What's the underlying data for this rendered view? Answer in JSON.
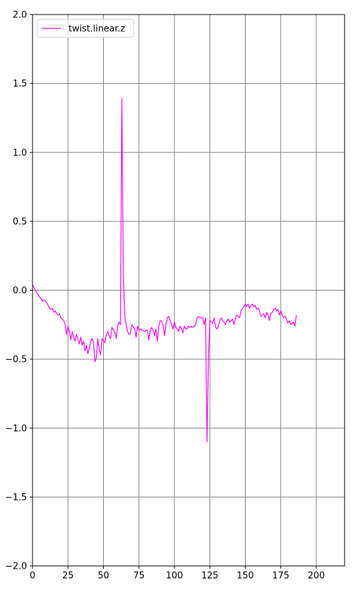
{
  "chart_data": {
    "type": "line",
    "title": "",
    "xlabel": "",
    "ylabel": "",
    "xlim": [
      0,
      220
    ],
    "ylim": [
      -2.0,
      2.0
    ],
    "x_ticks": [
      0,
      25,
      50,
      75,
      100,
      125,
      150,
      175,
      200
    ],
    "y_ticks": [
      -2.0,
      -1.5,
      -1.0,
      -0.5,
      0.0,
      0.5,
      1.0,
      1.5,
      2.0
    ],
    "x_tick_labels": [
      "0",
      "25",
      "50",
      "75",
      "100",
      "125",
      "150",
      "175",
      "200"
    ],
    "y_tick_labels": [
      "−2.0",
      "−1.5",
      "−1.0",
      "−0.5",
      "0.0",
      "0.5",
      "1.0",
      "1.5",
      "2.0"
    ],
    "grid": true,
    "grid_color": "#808080",
    "legend_position": "top-left",
    "series": [
      {
        "name": "twist.linear.z",
        "color": "#ff00ff",
        "points": [
          [
            0,
            0.04
          ],
          [
            1,
            0.02
          ],
          [
            2,
            0.0
          ],
          [
            3,
            -0.02
          ],
          [
            4,
            -0.03
          ],
          [
            5,
            -0.05
          ],
          [
            6,
            -0.06
          ],
          [
            7,
            -0.08
          ],
          [
            8,
            -0.07
          ],
          [
            9,
            -0.08
          ],
          [
            10,
            -0.09
          ],
          [
            11,
            -0.11
          ],
          [
            12,
            -0.13
          ],
          [
            13,
            -0.14
          ],
          [
            14,
            -0.13
          ],
          [
            15,
            -0.16
          ],
          [
            16,
            -0.15
          ],
          [
            17,
            -0.17
          ],
          [
            18,
            -0.18
          ],
          [
            19,
            -0.17
          ],
          [
            20,
            -0.2
          ],
          [
            21,
            -0.21
          ],
          [
            22,
            -0.22
          ],
          [
            23,
            -0.25
          ],
          [
            24,
            -0.32
          ],
          [
            25,
            -0.26
          ],
          [
            26,
            -0.3
          ],
          [
            27,
            -0.36
          ],
          [
            28,
            -0.3
          ],
          [
            29,
            -0.34
          ],
          [
            30,
            -0.37
          ],
          [
            31,
            -0.32
          ],
          [
            32,
            -0.35
          ],
          [
            33,
            -0.39
          ],
          [
            34,
            -0.34
          ],
          [
            35,
            -0.4
          ],
          [
            36,
            -0.37
          ],
          [
            37,
            -0.44
          ],
          [
            38,
            -0.4
          ],
          [
            39,
            -0.46
          ],
          [
            40,
            -0.42
          ],
          [
            41,
            -0.37
          ],
          [
            42,
            -0.35
          ],
          [
            43,
            -0.38
          ],
          [
            44,
            -0.52
          ],
          [
            45,
            -0.49
          ],
          [
            46,
            -0.35
          ],
          [
            47,
            -0.43
          ],
          [
            48,
            -0.47
          ],
          [
            49,
            -0.35
          ],
          [
            50,
            -0.37
          ],
          [
            51,
            -0.38
          ],
          [
            52,
            -0.32
          ],
          [
            53,
            -0.3
          ],
          [
            54,
            -0.33
          ],
          [
            55,
            -0.35
          ],
          [
            56,
            -0.27
          ],
          [
            57,
            -0.29
          ],
          [
            58,
            -0.3
          ],
          [
            59,
            -0.35
          ],
          [
            60,
            -0.26
          ],
          [
            61,
            -0.23
          ],
          [
            62,
            -0.25
          ],
          [
            63,
            1.39
          ],
          [
            64,
            0.1
          ],
          [
            65,
            -0.18
          ],
          [
            66,
            -0.25
          ],
          [
            67,
            -0.3
          ],
          [
            68,
            -0.32
          ],
          [
            69,
            -0.31
          ],
          [
            70,
            -0.25
          ],
          [
            71,
            -0.27
          ],
          [
            72,
            -0.28
          ],
          [
            73,
            -0.34
          ],
          [
            74,
            -0.26
          ],
          [
            75,
            -0.29
          ],
          [
            76,
            -0.28
          ],
          [
            77,
            -0.29
          ],
          [
            78,
            -0.29
          ],
          [
            79,
            -0.3
          ],
          [
            80,
            -0.29
          ],
          [
            81,
            -0.29
          ],
          [
            82,
            -0.36
          ],
          [
            83,
            -0.29
          ],
          [
            84,
            -0.27
          ],
          [
            85,
            -0.29
          ],
          [
            86,
            -0.33
          ],
          [
            87,
            -0.28
          ],
          [
            88,
            -0.37
          ],
          [
            89,
            -0.26
          ],
          [
            90,
            -0.22
          ],
          [
            91,
            -0.23
          ],
          [
            92,
            -0.25
          ],
          [
            93,
            -0.33
          ],
          [
            94,
            -0.25
          ],
          [
            95,
            -0.2
          ],
          [
            96,
            -0.19
          ],
          [
            97,
            -0.22
          ],
          [
            98,
            -0.25
          ],
          [
            99,
            -0.28
          ],
          [
            100,
            -0.23
          ],
          [
            101,
            -0.27
          ],
          [
            102,
            -0.28
          ],
          [
            103,
            -0.3
          ],
          [
            104,
            -0.26
          ],
          [
            105,
            -0.28
          ],
          [
            106,
            -0.31
          ],
          [
            107,
            -0.26
          ],
          [
            108,
            -0.28
          ],
          [
            109,
            -0.28
          ],
          [
            110,
            -0.26
          ],
          [
            111,
            -0.27
          ],
          [
            112,
            -0.26
          ],
          [
            113,
            -0.27
          ],
          [
            114,
            -0.26
          ],
          [
            115,
            -0.25
          ],
          [
            116,
            -0.2
          ],
          [
            117,
            -0.19
          ],
          [
            118,
            -0.2
          ],
          [
            119,
            -0.2
          ],
          [
            120,
            -0.2
          ],
          [
            121,
            -0.25
          ],
          [
            122,
            -0.2
          ],
          [
            123,
            -1.1
          ],
          [
            124,
            -0.5
          ],
          [
            125,
            -0.22
          ],
          [
            126,
            -0.23
          ],
          [
            127,
            -0.24
          ],
          [
            128,
            -0.2
          ],
          [
            129,
            -0.27
          ],
          [
            130,
            -0.28
          ],
          [
            131,
            -0.26
          ],
          [
            132,
            -0.22
          ],
          [
            133,
            -0.2
          ],
          [
            134,
            -0.22
          ],
          [
            135,
            -0.23
          ],
          [
            136,
            -0.25
          ],
          [
            137,
            -0.22
          ],
          [
            138,
            -0.21
          ],
          [
            139,
            -0.23
          ],
          [
            140,
            -0.22
          ],
          [
            141,
            -0.21
          ],
          [
            142,
            -0.25
          ],
          [
            143,
            -0.2
          ],
          [
            144,
            -0.18
          ],
          [
            145,
            -0.19
          ],
          [
            146,
            -0.2
          ],
          [
            147,
            -0.15
          ],
          [
            148,
            -0.13
          ],
          [
            149,
            -0.12
          ],
          [
            150,
            -0.1
          ],
          [
            151,
            -0.12
          ],
          [
            152,
            -0.1
          ],
          [
            153,
            -0.13
          ],
          [
            154,
            -0.11
          ],
          [
            155,
            -0.1
          ],
          [
            156,
            -0.12
          ],
          [
            157,
            -0.11
          ],
          [
            158,
            -0.14
          ],
          [
            159,
            -0.13
          ],
          [
            160,
            -0.15
          ],
          [
            161,
            -0.19
          ],
          [
            162,
            -0.18
          ],
          [
            163,
            -0.17
          ],
          [
            164,
            -0.2
          ],
          [
            165,
            -0.16
          ],
          [
            166,
            -0.18
          ],
          [
            167,
            -0.22
          ],
          [
            168,
            -0.17
          ],
          [
            169,
            -0.16
          ],
          [
            170,
            -0.14
          ],
          [
            171,
            -0.13
          ],
          [
            172,
            -0.15
          ],
          [
            173,
            -0.14
          ],
          [
            174,
            -0.18
          ],
          [
            175,
            -0.15
          ],
          [
            176,
            -0.18
          ],
          [
            177,
            -0.2
          ],
          [
            178,
            -0.19
          ],
          [
            179,
            -0.21
          ],
          [
            180,
            -0.24
          ],
          [
            181,
            -0.22
          ],
          [
            182,
            -0.25
          ],
          [
            183,
            -0.24
          ],
          [
            184,
            -0.23
          ],
          [
            185,
            -0.26
          ],
          [
            186,
            -0.18
          ]
        ]
      }
    ]
  }
}
